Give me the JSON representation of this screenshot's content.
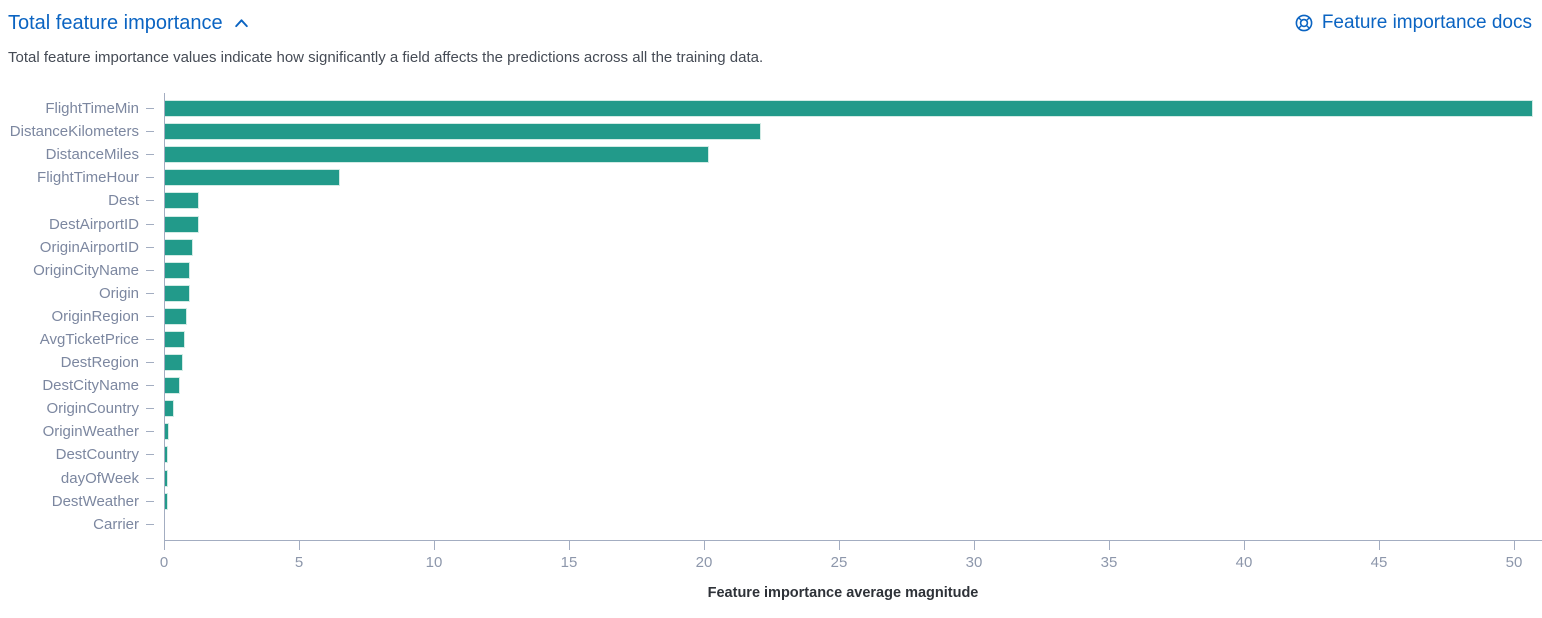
{
  "header": {
    "title": "Total feature importance",
    "docs_link": "Feature importance docs",
    "description": "Total feature importance values indicate how significantly a field affects the predictions across all the training data."
  },
  "colors": {
    "link": "#0b64c2",
    "bar": "#229a8a",
    "bar_border": "#d2ebe5",
    "axis": "#a3adc1",
    "y_label": "#7c87a0",
    "tick_label": "#8d97ab",
    "description_text": "#454b55"
  },
  "chart_data": {
    "type": "bar",
    "orientation": "horizontal",
    "title": "",
    "xlabel": "Feature importance average magnitude",
    "ylabel": "",
    "categories": [
      "FlightTimeMin",
      "DistanceKilometers",
      "DistanceMiles",
      "FlightTimeHour",
      "Dest",
      "DestAirportID",
      "OriginAirportID",
      "OriginCityName",
      "Origin",
      "OriginRegion",
      "AvgTicketPrice",
      "DestRegion",
      "DestCityName",
      "OriginCountry",
      "OriginWeather",
      "DestCountry",
      "dayOfWeek",
      "DestWeather",
      "Carrier"
    ],
    "values": [
      50.7,
      22.1,
      20.2,
      6.5,
      1.31,
      1.28,
      1.06,
      0.96,
      0.95,
      0.85,
      0.78,
      0.7,
      0.58,
      0.37,
      0.17,
      0.16,
      0.15,
      0.13,
      0.04
    ],
    "xticks": [
      0,
      5,
      10,
      15,
      20,
      25,
      30,
      35,
      40,
      45,
      50
    ],
    "xlim": [
      0,
      50.8
    ],
    "grid": false,
    "legend": false
  }
}
